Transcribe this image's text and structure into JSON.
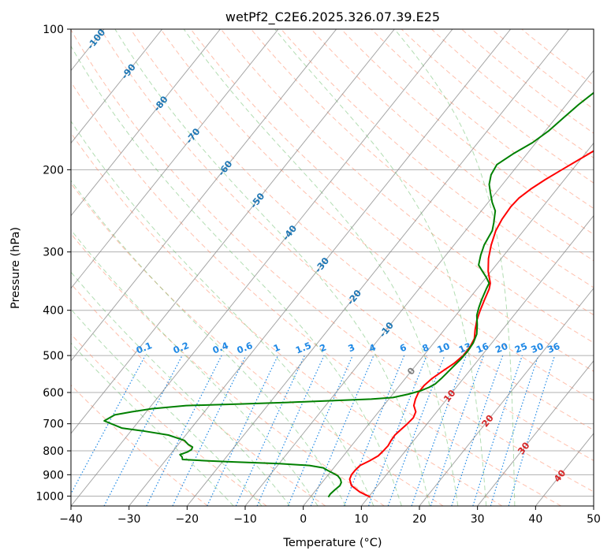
{
  "chart_data": {
    "type": "line",
    "title": "wetPf2_C2E6.2025.326.07.39.E25",
    "xlabel": "Temperature (°C)",
    "ylabel": "Pressure (hPa)",
    "xlim": [
      -40,
      50
    ],
    "ylim": [
      1050,
      100
    ],
    "x_ticks": [
      -40,
      -30,
      -20,
      -10,
      0,
      10,
      20,
      30,
      40,
      50
    ],
    "y_ticks": [
      100,
      200,
      300,
      400,
      500,
      600,
      700,
      800,
      900,
      1000
    ],
    "colors": {
      "temperature": "#ff0000",
      "dewpoint": "#008000",
      "dry_adiabat": "#ff8c69",
      "moist_adiabat": "#66bb66",
      "mixing_ratio": "#1e88e5",
      "isotherm": "#808080",
      "grid": "#b0b0b0",
      "isotherm_label": "#1f77b4",
      "isotherm_label_warm": "#d62728",
      "isotherm_label_zero": "#7f7f7f"
    },
    "series": [
      {
        "name": "Temperature",
        "color": "#ff0000",
        "points": [
          [
            1005,
            10.3
          ],
          [
            980,
            7.8
          ],
          [
            950,
            5.5
          ],
          [
            920,
            4.3
          ],
          [
            900,
            4.0
          ],
          [
            880,
            4.0
          ],
          [
            860,
            4.2
          ],
          [
            840,
            5.2
          ],
          [
            820,
            6.0
          ],
          [
            800,
            6.2
          ],
          [
            780,
            6.3
          ],
          [
            760,
            6.1
          ],
          [
            740,
            6.0
          ],
          [
            720,
            6.3
          ],
          [
            700,
            6.6
          ],
          [
            680,
            6.8
          ],
          [
            660,
            6.4
          ],
          [
            640,
            5.2
          ],
          [
            620,
            4.6
          ],
          [
            600,
            4.2
          ],
          [
            580,
            4.2
          ],
          [
            560,
            4.6
          ],
          [
            540,
            5.4
          ],
          [
            520,
            6.3
          ],
          [
            500,
            6.8
          ],
          [
            480,
            6.8
          ],
          [
            460,
            6.4
          ],
          [
            440,
            5.3
          ],
          [
            420,
            4.3
          ],
          [
            400,
            3.5
          ],
          [
            380,
            2.8
          ],
          [
            360,
            2.1
          ],
          [
            350,
            1.5
          ],
          [
            330,
            -0.5
          ],
          [
            310,
            -2.2
          ],
          [
            290,
            -3.6
          ],
          [
            270,
            -4.8
          ],
          [
            255,
            -5.3
          ],
          [
            240,
            -5.5
          ],
          [
            230,
            -5.3
          ],
          [
            220,
            -4.5
          ],
          [
            210,
            -3.3
          ],
          [
            200,
            -1.8
          ],
          [
            190,
            -0.2
          ],
          [
            180,
            1.5
          ],
          [
            170,
            3.3
          ],
          [
            160,
            5.2
          ],
          [
            150,
            7.2
          ],
          [
            140,
            9.4
          ],
          [
            130,
            11.8
          ],
          [
            120,
            14.2
          ],
          [
            110,
            16.8
          ],
          [
            100,
            19.3
          ]
        ]
      },
      {
        "name": "Dewpoint",
        "color": "#008000",
        "points": [
          [
            1005,
            3.1
          ],
          [
            990,
            3.0
          ],
          [
            970,
            3.2
          ],
          [
            950,
            3.5
          ],
          [
            935,
            3.3
          ],
          [
            920,
            2.7
          ],
          [
            905,
            1.8
          ],
          [
            895,
            0.8
          ],
          [
            880,
            -0.8
          ],
          [
            870,
            -1.8
          ],
          [
            860,
            -4.5
          ],
          [
            852,
            -10.0
          ],
          [
            845,
            -18.0
          ],
          [
            840,
            -23.0
          ],
          [
            835,
            -27.2
          ],
          [
            825,
            -27.6
          ],
          [
            815,
            -28.3
          ],
          [
            805,
            -27.4
          ],
          [
            795,
            -27.0
          ],
          [
            785,
            -27.2
          ],
          [
            775,
            -28.3
          ],
          [
            760,
            -29.5
          ],
          [
            740,
            -33.0
          ],
          [
            725,
            -38.0
          ],
          [
            715,
            -42.0
          ],
          [
            690,
            -46.0
          ],
          [
            670,
            -45.0
          ],
          [
            660,
            -42.5
          ],
          [
            650,
            -39.5
          ],
          [
            640,
            -34.0
          ],
          [
            635,
            -25.0
          ],
          [
            630,
            -17.0
          ],
          [
            625,
            -10.0
          ],
          [
            620,
            -3.0
          ],
          [
            615,
            0.5
          ],
          [
            605,
            2.7
          ],
          [
            595,
            4.3
          ],
          [
            585,
            5.3
          ],
          [
            575,
            5.9
          ],
          [
            560,
            6.2
          ],
          [
            545,
            6.4
          ],
          [
            530,
            6.6
          ],
          [
            510,
            6.9
          ],
          [
            490,
            7.0
          ],
          [
            470,
            6.8
          ],
          [
            450,
            6.2
          ],
          [
            430,
            5.0
          ],
          [
            410,
            3.6
          ],
          [
            395,
            2.9
          ],
          [
            380,
            2.3
          ],
          [
            360,
            1.6
          ],
          [
            350,
            1.3
          ],
          [
            340,
            0.0
          ],
          [
            330,
            -1.5
          ],
          [
            320,
            -3.0
          ],
          [
            305,
            -4.0
          ],
          [
            290,
            -4.8
          ],
          [
            270,
            -5.4
          ],
          [
            260,
            -6.2
          ],
          [
            245,
            -7.6
          ],
          [
            235,
            -9.3
          ],
          [
            225,
            -10.8
          ],
          [
            215,
            -12.3
          ],
          [
            205,
            -13.3
          ],
          [
            195,
            -13.7
          ],
          [
            185,
            -12.4
          ],
          [
            175,
            -10.6
          ],
          [
            165,
            -9.4
          ],
          [
            155,
            -8.7
          ],
          [
            145,
            -7.9
          ],
          [
            135,
            -6.7
          ],
          [
            125,
            -5.2
          ],
          [
            115,
            -3.6
          ],
          [
            105,
            -1.6
          ],
          [
            100,
            -0.3
          ]
        ]
      }
    ],
    "isotherm_labels": [
      -100,
      -90,
      -80,
      -70,
      -60,
      -50,
      -40,
      -30,
      -20,
      -10,
      0,
      10,
      20,
      30,
      40
    ],
    "mixing_ratio_values": [
      0.1,
      0.2,
      0.4,
      0.6,
      1,
      1.5,
      2,
      3,
      4,
      6,
      8,
      10,
      13,
      16,
      20,
      25,
      30,
      36
    ],
    "mixing_ratio_labels": [
      "0.1",
      "0.2",
      "0.4",
      "0.6",
      "1",
      "1.5",
      "2",
      "3",
      "4",
      "6",
      "8",
      "10",
      "13",
      "16",
      "20",
      "25",
      "30",
      "36"
    ],
    "mixing_ratio_label_pressure": 500,
    "dry_adiabat_thetas_c": [
      -20,
      -10,
      0,
      10,
      20,
      30,
      40,
      50,
      60,
      70,
      80,
      90,
      100,
      110,
      120,
      130,
      140,
      150,
      160,
      170,
      180,
      190,
      200
    ],
    "moist_adiabat_start_c": [
      -15,
      -10,
      -5,
      0,
      5,
      10,
      15,
      20,
      25,
      30,
      35
    ],
    "grid": true
  }
}
